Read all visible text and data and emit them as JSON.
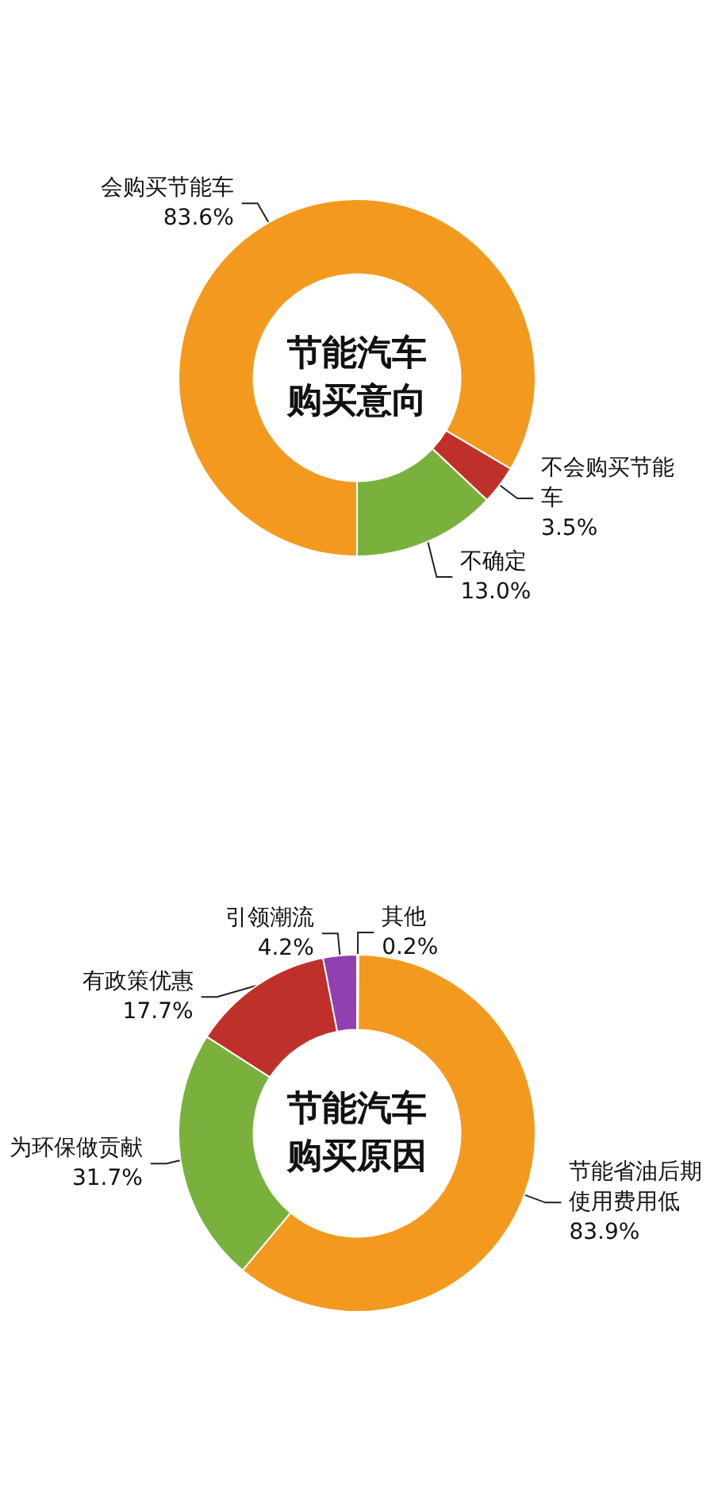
{
  "chart_data": [
    {
      "type": "donut",
      "title": "节能汽车购买意向",
      "categories": [
        "会购买节能车",
        "不会购买节能车",
        "不确定"
      ],
      "values": [
        83.6,
        3.5,
        13.0
      ],
      "colors": [
        "#f39a1e",
        "#c0302a",
        "#7ab03c"
      ],
      "value_labels": [
        "83.6%",
        "3.5%",
        "13.0%"
      ]
    },
    {
      "type": "donut",
      "title": "节能汽车购买原因",
      "categories": [
        "其他",
        "节能省油后期使用费用低",
        "为环保做贡献",
        "有政策优惠",
        "引领潮流"
      ],
      "values": [
        0.2,
        83.9,
        31.7,
        17.7,
        4.2
      ],
      "colors": [
        "#8fb5e0",
        "#f39a1e",
        "#7ab03c",
        "#c0302a",
        "#9040b0"
      ],
      "value_labels": [
        "0.2%",
        "83.9%",
        "31.7%",
        "17.7%",
        "4.2%"
      ]
    }
  ]
}
